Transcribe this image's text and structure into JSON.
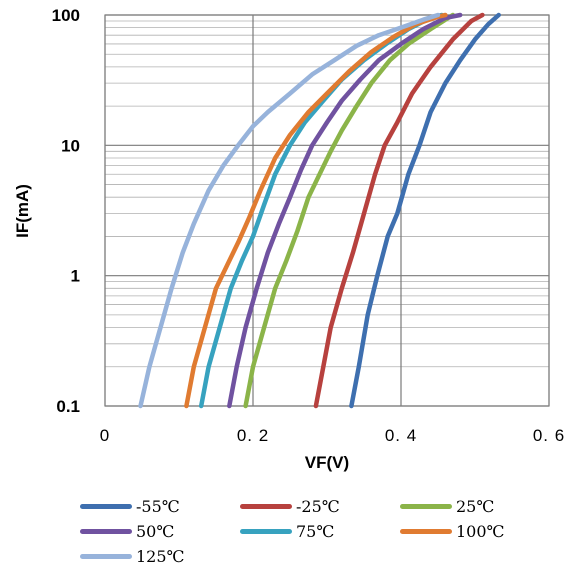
{
  "chart_data": {
    "type": "line",
    "title": "",
    "xlabel": "VF(V)",
    "ylabel": "IF(mA)",
    "xlim": [
      0,
      0.6
    ],
    "ylim": [
      0.1,
      100
    ],
    "yscale": "log",
    "grid": true,
    "legend_position": "bottom",
    "x_ticks": [
      "0",
      "0. 2",
      "0. 4",
      "0. 6"
    ],
    "y_ticks": [
      "0.1",
      "1",
      "10",
      "100"
    ],
    "series": [
      {
        "name": "-55℃",
        "color": "#3e6faf",
        "points": [
          [
            0.333,
            0.1
          ],
          [
            0.343,
            0.2
          ],
          [
            0.355,
            0.5
          ],
          [
            0.368,
            1
          ],
          [
            0.382,
            2
          ],
          [
            0.395,
            3
          ],
          [
            0.41,
            6
          ],
          [
            0.425,
            10
          ],
          [
            0.44,
            18
          ],
          [
            0.46,
            30
          ],
          [
            0.48,
            45
          ],
          [
            0.5,
            65
          ],
          [
            0.518,
            85
          ],
          [
            0.532,
            100
          ]
        ]
      },
      {
        "name": "-25℃",
        "color": "#b7413e",
        "points": [
          [
            0.285,
            0.1
          ],
          [
            0.295,
            0.2
          ],
          [
            0.305,
            0.4
          ],
          [
            0.32,
            0.8
          ],
          [
            0.335,
            1.5
          ],
          [
            0.35,
            3
          ],
          [
            0.365,
            6
          ],
          [
            0.378,
            10
          ],
          [
            0.395,
            15
          ],
          [
            0.415,
            25
          ],
          [
            0.44,
            40
          ],
          [
            0.47,
            65
          ],
          [
            0.495,
            90
          ],
          [
            0.51,
            100
          ]
        ]
      },
      {
        "name": "25℃",
        "color": "#8bb449",
        "points": [
          [
            0.19,
            0.1
          ],
          [
            0.2,
            0.2
          ],
          [
            0.215,
            0.4
          ],
          [
            0.23,
            0.8
          ],
          [
            0.245,
            1.3
          ],
          [
            0.26,
            2.2
          ],
          [
            0.275,
            4
          ],
          [
            0.29,
            6
          ],
          [
            0.305,
            9
          ],
          [
            0.32,
            13
          ],
          [
            0.34,
            20
          ],
          [
            0.36,
            30
          ],
          [
            0.385,
            45
          ],
          [
            0.41,
            60
          ],
          [
            0.44,
            78
          ],
          [
            0.47,
            100
          ]
        ]
      },
      {
        "name": "50℃",
        "color": "#7052a0",
        "points": [
          [
            0.168,
            0.1
          ],
          [
            0.178,
            0.2
          ],
          [
            0.19,
            0.4
          ],
          [
            0.205,
            0.8
          ],
          [
            0.22,
            1.5
          ],
          [
            0.235,
            2.5
          ],
          [
            0.25,
            4
          ],
          [
            0.265,
            6.5
          ],
          [
            0.28,
            10
          ],
          [
            0.3,
            15
          ],
          [
            0.32,
            22
          ],
          [
            0.345,
            32
          ],
          [
            0.37,
            45
          ],
          [
            0.4,
            60
          ],
          [
            0.43,
            78
          ],
          [
            0.46,
            95
          ],
          [
            0.48,
            100
          ]
        ]
      },
      {
        "name": "75℃",
        "color": "#37a2bf",
        "points": [
          [
            0.13,
            0.1
          ],
          [
            0.14,
            0.2
          ],
          [
            0.155,
            0.4
          ],
          [
            0.17,
            0.8
          ],
          [
            0.185,
            1.3
          ],
          [
            0.2,
            2
          ],
          [
            0.215,
            3.5
          ],
          [
            0.23,
            6
          ],
          [
            0.25,
            10
          ],
          [
            0.27,
            15
          ],
          [
            0.295,
            22
          ],
          [
            0.32,
            32
          ],
          [
            0.35,
            45
          ],
          [
            0.38,
            60
          ],
          [
            0.41,
            78
          ],
          [
            0.44,
            95
          ],
          [
            0.455,
            100
          ]
        ]
      },
      {
        "name": "100℃",
        "color": "#e07b31",
        "points": [
          [
            0.11,
            0.1
          ],
          [
            0.12,
            0.2
          ],
          [
            0.135,
            0.4
          ],
          [
            0.15,
            0.8
          ],
          [
            0.165,
            1.2
          ],
          [
            0.18,
            1.8
          ],
          [
            0.195,
            2.8
          ],
          [
            0.21,
            4.5
          ],
          [
            0.23,
            8
          ],
          [
            0.25,
            12
          ],
          [
            0.275,
            18
          ],
          [
            0.3,
            25
          ],
          [
            0.33,
            37
          ],
          [
            0.36,
            52
          ],
          [
            0.39,
            68
          ],
          [
            0.42,
            85
          ],
          [
            0.45,
            97
          ],
          [
            0.46,
            100
          ]
        ]
      },
      {
        "name": "125℃",
        "color": "#97b3db",
        "points": [
          [
            0.048,
            0.1
          ],
          [
            0.06,
            0.2
          ],
          [
            0.075,
            0.4
          ],
          [
            0.09,
            0.8
          ],
          [
            0.105,
            1.5
          ],
          [
            0.12,
            2.5
          ],
          [
            0.14,
            4.5
          ],
          [
            0.16,
            7
          ],
          [
            0.18,
            10
          ],
          [
            0.2,
            14
          ],
          [
            0.22,
            18
          ],
          [
            0.25,
            25
          ],
          [
            0.28,
            35
          ],
          [
            0.31,
            45
          ],
          [
            0.34,
            58
          ],
          [
            0.37,
            70
          ],
          [
            0.4,
            80
          ],
          [
            0.43,
            92
          ],
          [
            0.45,
            100
          ]
        ]
      }
    ]
  }
}
